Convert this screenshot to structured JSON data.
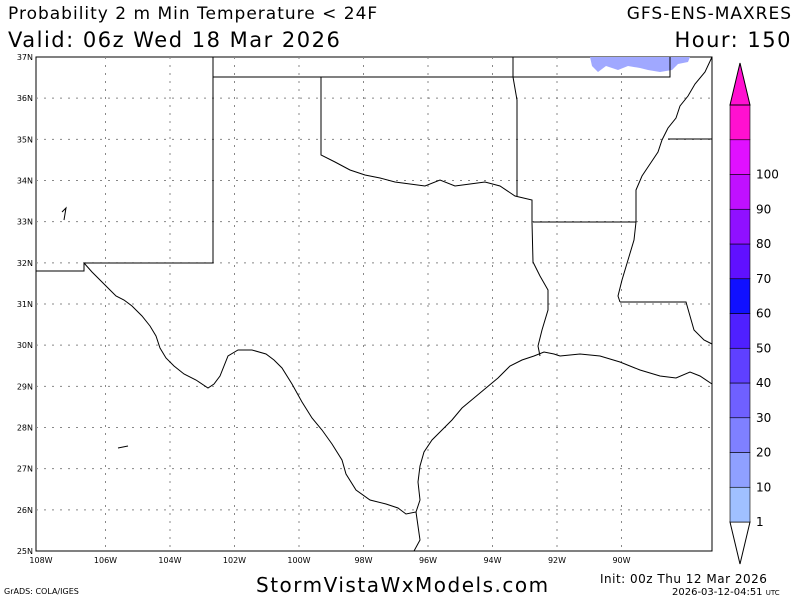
{
  "header": {
    "title": "Probability 2 m Min Temperature < 24F",
    "model": "GFS-ENS-MAXRES",
    "valid": "Valid: 06z Wed 18 Mar 2026",
    "hour": "Hour: 150"
  },
  "map": {
    "lat_labels": [
      "37N",
      "36N",
      "35N",
      "34N",
      "33N",
      "32N",
      "31N",
      "30N",
      "29N",
      "28N",
      "27N",
      "26N",
      "25N"
    ],
    "lon_labels": [
      "108W",
      "106W",
      "104W",
      "102W",
      "100W",
      "98W",
      "96W",
      "94W",
      "92W",
      "90W"
    ],
    "shaded_region_color": "#a0a8ff"
  },
  "legend": {
    "labels": [
      "1",
      "10",
      "20",
      "30",
      "40",
      "50",
      "60",
      "70",
      "80",
      "90",
      "100"
    ],
    "colors": [
      "#a0c0ff",
      "#8fa0ff",
      "#7f80ff",
      "#6f60ff",
      "#5f40ff",
      "#4f20ff",
      "#1010ff",
      "#6010ff",
      "#9010ff",
      "#c010ff",
      "#e010ff",
      "#ff10d0"
    ]
  },
  "footer": {
    "grads": "GrADS: COLA/IGES",
    "site": "StormVistaWxModels.com",
    "init": "Init: 00z Thu 12 Mar 2026",
    "timestamp": "2026-03-12-04:51",
    "tz": "UTC"
  }
}
